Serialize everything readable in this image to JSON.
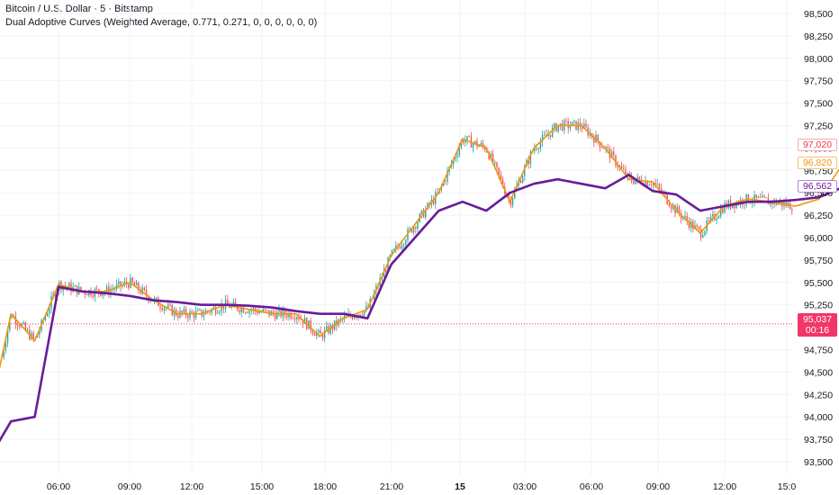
{
  "header": {
    "symbol_line": "Bitcoin / U.S. Dollar · 5 · Bitstamp",
    "indicator_line": "Dual Adoptive Curves (Weighted Average, 0.771, 0.271, 0, 0, 0, 0, 0, 0)"
  },
  "colors": {
    "up": "#26a69a",
    "down": "#ef5350",
    "fast_curve": "#f0950c",
    "slow_curve": "#6a1b9a",
    "price_line": "#f23645"
  },
  "badges": {
    "red": "97,020",
    "orange": "96,820",
    "purple": "96,562",
    "last_price": "95,037",
    "countdown": "00:16"
  },
  "chart_data": {
    "type": "line",
    "ylim": [
      93350,
      98650
    ],
    "y_ticks": [
      "98,500",
      "98,250",
      "98,000",
      "97,750",
      "97,500",
      "97,250",
      "97,000",
      "96,750",
      "96,500",
      "96,250",
      "96,000",
      "95,750",
      "95,500",
      "95,250",
      "95,000",
      "94,750",
      "94,500",
      "94,250",
      "94,000",
      "93,750",
      "93,500"
    ],
    "x_ticks": [
      "06:00",
      "09:00",
      "12:00",
      "15:00",
      "18:00",
      "21:00",
      "15",
      "03:00",
      "06:00",
      "09:00",
      "12:00",
      "15:0"
    ],
    "last_price": 95037,
    "series": [
      {
        "name": "Dual Adoptive Curves fast",
        "color": "#f0950c",
        "x": [
          "14 03:00",
          "14 04:00",
          "14 05:00",
          "14 06:00",
          "14 07:00",
          "14 08:00",
          "14 09:00",
          "14 10:00",
          "14 11:00",
          "14 12:00",
          "14 13:00",
          "14 14:00",
          "14 15:00",
          "14 16:00",
          "14 17:00",
          "14 18:00",
          "14 19:00",
          "14 20:00",
          "14 21:00",
          "14 22:00",
          "14 23:00",
          "15 00:00",
          "15 01:00",
          "15 02:00",
          "15 03:00",
          "15 04:00",
          "15 05:00",
          "15 06:00",
          "15 07:00",
          "15 08:00",
          "15 09:00",
          "15 10:00",
          "15 11:00",
          "15 12:00",
          "15 13:00",
          "15 14:00",
          "15 15:00"
        ],
        "values": [
          93900,
          95150,
          94850,
          95480,
          95400,
          95400,
          95500,
          95300,
          95150,
          95150,
          95250,
          95200,
          95150,
          95150,
          94900,
          95100,
          95200,
          95800,
          96150,
          96500,
          97100,
          97000,
          96400,
          97000,
          97250,
          97250,
          97000,
          96650,
          96620,
          96300,
          96050,
          96350,
          96430,
          96400,
          96350,
          96430,
          96820
        ]
      },
      {
        "name": "Dual Adoptive Curves slow",
        "color": "#6a1b9a",
        "x": [
          "14 03:00",
          "14 04:00",
          "14 05:00",
          "14 06:00",
          "14 07:00",
          "14 08:00",
          "14 09:00",
          "14 10:00",
          "14 11:00",
          "14 12:00",
          "14 13:00",
          "14 14:00",
          "14 15:00",
          "14 16:00",
          "14 17:00",
          "14 18:00",
          "14 19:00",
          "14 20:00",
          "14 21:00",
          "14 22:00",
          "14 23:00",
          "15 00:00",
          "15 01:00",
          "15 02:00",
          "15 03:00",
          "15 04:00",
          "15 05:00",
          "15 06:00",
          "15 07:00",
          "15 08:00",
          "15 09:00",
          "15 10:00",
          "15 11:00",
          "15 12:00",
          "15 13:00",
          "15 14:00",
          "15 15:00"
        ],
        "values": [
          93500,
          93950,
          94000,
          95450,
          95400,
          95380,
          95350,
          95300,
          95280,
          95250,
          95250,
          95240,
          95220,
          95180,
          95150,
          95150,
          95100,
          95700,
          96000,
          96300,
          96400,
          96300,
          96500,
          96600,
          96650,
          96600,
          96550,
          96700,
          96520,
          96480,
          96300,
          96350,
          96400,
          96400,
          96420,
          96450,
          96562
        ]
      }
    ]
  }
}
